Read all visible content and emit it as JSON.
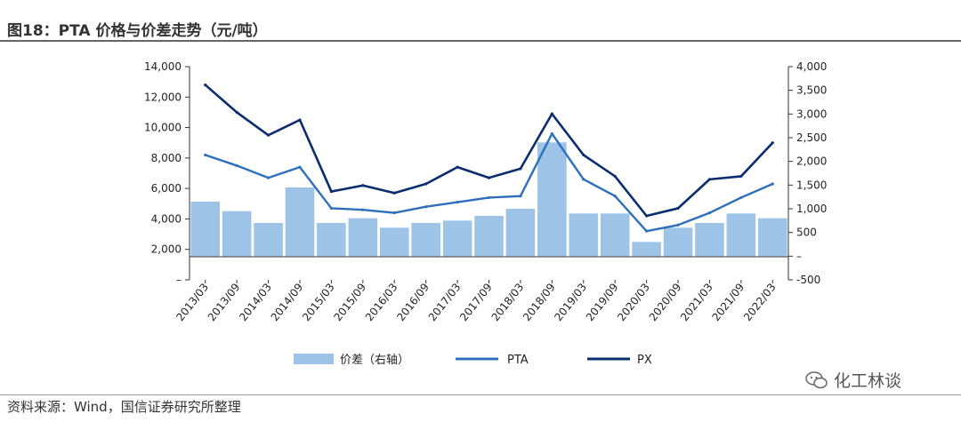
{
  "figure": {
    "title": "图18：PTA 价格与价差走势（元/吨）",
    "source": "资料来源：Wind，国信证券研究所整理",
    "watermark": "化工林谈"
  },
  "colors": {
    "px": "#0a2d6e",
    "pta": "#2e6fbd",
    "spread": "#9dc3e6",
    "axis": "#333333"
  },
  "chart_data": {
    "type": "line",
    "title": "PTA 价格与价差走势（元/吨）",
    "unit": "元/吨",
    "x": [
      "2013/03",
      "2013/09",
      "2014/03",
      "2014/09",
      "2015/03",
      "2015/09",
      "2016/03",
      "2016/09",
      "2017/03",
      "2017/09",
      "2018/03",
      "2018/09",
      "2019/03",
      "2019/09",
      "2020/03",
      "2020/09",
      "2021/03",
      "2021/09",
      "2022/03"
    ],
    "left_axis": {
      "ylim": [
        0,
        14000
      ],
      "ticks": [
        0,
        2000,
        4000,
        6000,
        8000,
        10000,
        12000,
        14000
      ],
      "tick_labels": [
        "–",
        "2,000",
        "4,000",
        "6,000",
        "8,000",
        "10,000",
        "12,000",
        "14,000"
      ]
    },
    "right_axis": {
      "ylim": [
        -500,
        4000
      ],
      "ticks": [
        -500,
        0,
        500,
        1000,
        1500,
        2000,
        2500,
        3000,
        3500,
        4000
      ],
      "tick_labels": [
        "-500",
        "–",
        "500",
        "1,000",
        "1,500",
        "2,000",
        "2,500",
        "3,000",
        "3,500",
        "4,000"
      ]
    },
    "series": [
      {
        "name": "价差（右轴）",
        "axis": "right",
        "style": "area",
        "values": [
          1150,
          950,
          700,
          1450,
          700,
          800,
          600,
          700,
          750,
          850,
          1000,
          2400,
          900,
          900,
          300,
          600,
          700,
          900,
          800
        ]
      },
      {
        "name": "PTA",
        "axis": "left",
        "style": "line",
        "values": [
          8200,
          7500,
          6700,
          7400,
          4700,
          4600,
          4400,
          4800,
          5100,
          5400,
          5500,
          9600,
          6600,
          5500,
          3200,
          3600,
          4400,
          5400,
          6300
        ]
      },
      {
        "name": "PX",
        "axis": "left",
        "style": "line",
        "values": [
          12800,
          11000,
          9500,
          10500,
          5800,
          6200,
          5700,
          6300,
          7400,
          6700,
          7300,
          10900,
          8200,
          6800,
          4200,
          4700,
          6600,
          6800,
          9000
        ]
      }
    ],
    "legend": [
      "价差（右轴）",
      "PTA",
      "PX"
    ],
    "legend_position": "bottom"
  }
}
